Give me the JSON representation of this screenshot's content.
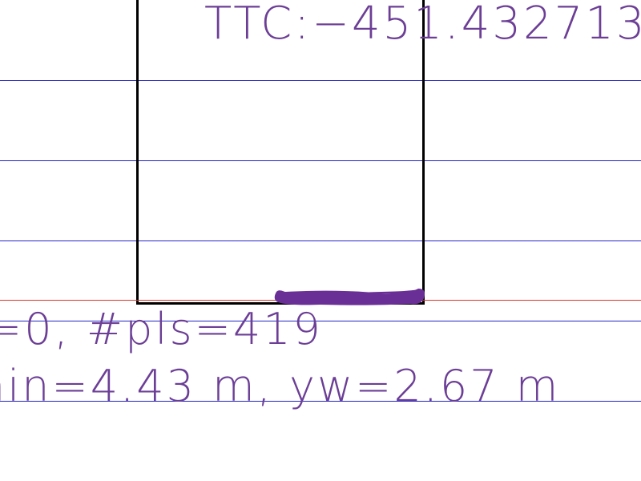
{
  "colors": {
    "background": "#ffffff",
    "grid_lines": "#2626c4",
    "ground_line": "#d9372b",
    "vehicle_box": "#000000",
    "text": "#6c3e96",
    "point_cloud": "#6a2f96"
  },
  "readouts": {
    "ttc": "TTC:−451.432713",
    "points": "=0, #pls=419",
    "dimensions": "nin=4.43 m, yw=2.67 m"
  }
}
